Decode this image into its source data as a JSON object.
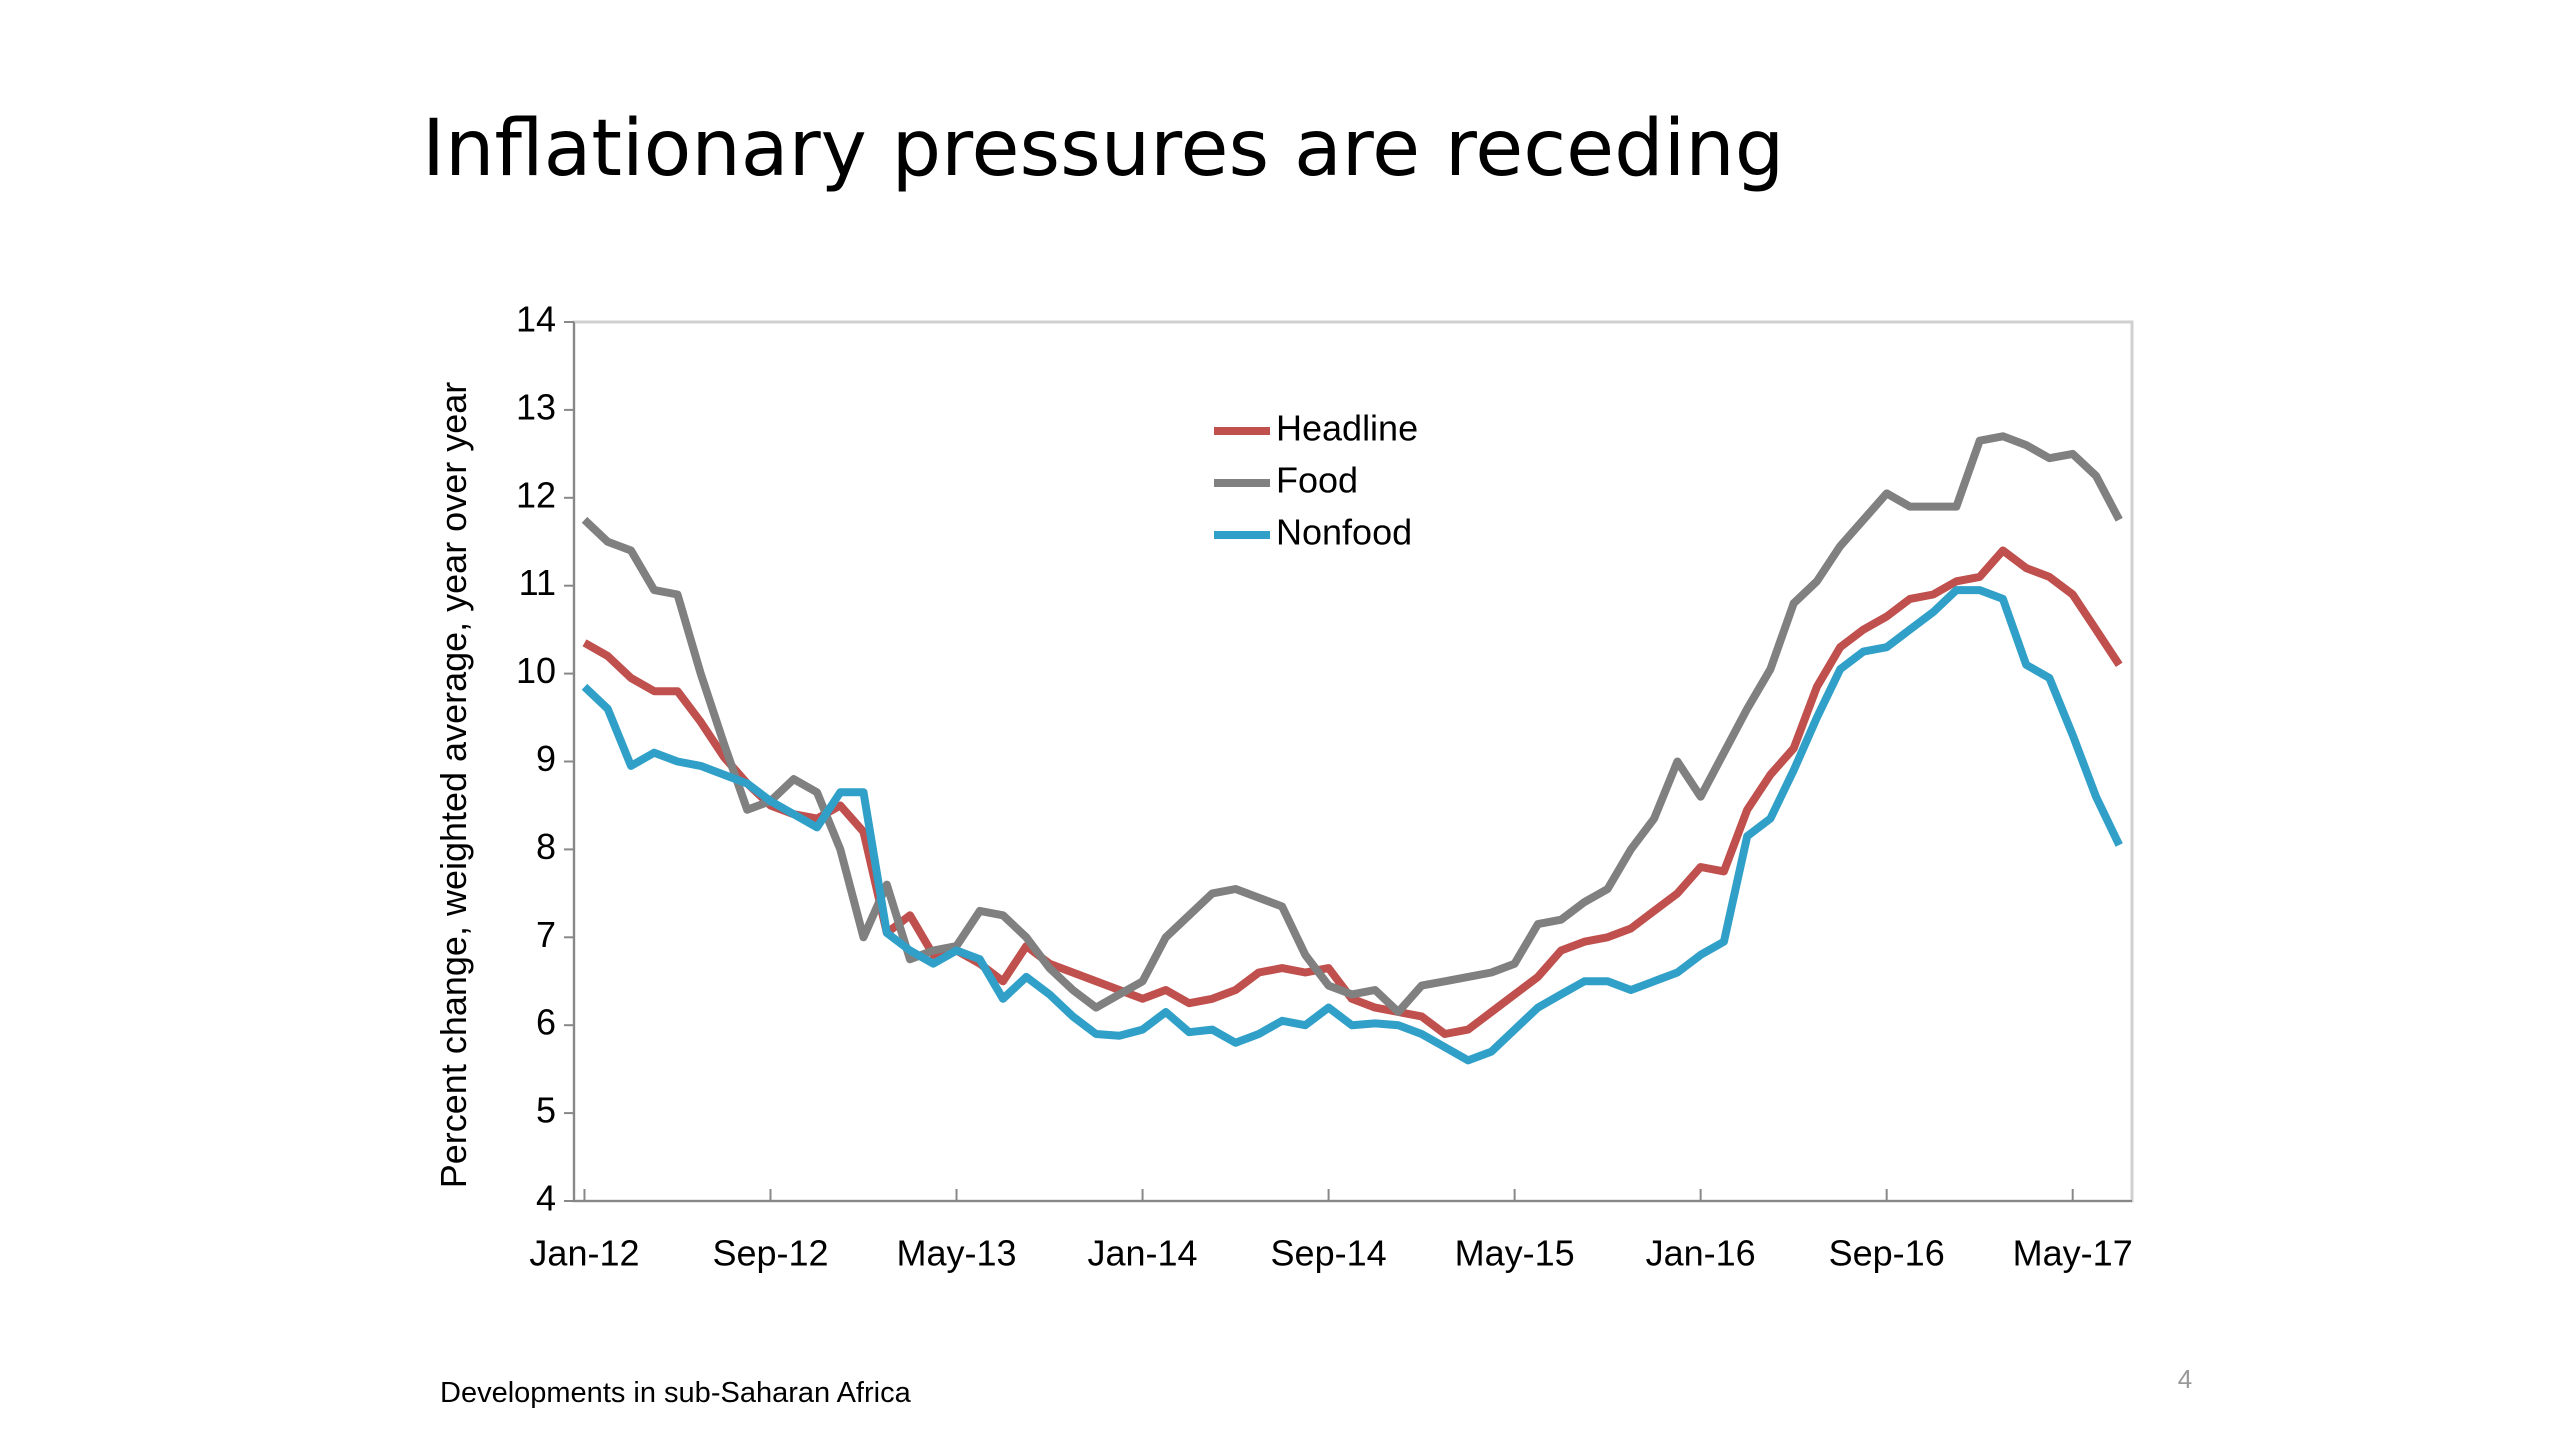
{
  "title": "Inflationary pressures are receding",
  "footer": "Developments in sub-Saharan Africa",
  "page_number": "4",
  "chart_data": {
    "type": "line",
    "y_label": "Percent change, weighted average, year over year",
    "categories": [
      "Jan-12",
      null,
      null,
      null,
      null,
      null,
      null,
      null,
      "Sep-12",
      null,
      null,
      null,
      null,
      null,
      null,
      null,
      "May-13",
      null,
      null,
      null,
      null,
      null,
      null,
      null,
      "Jan-14",
      null,
      null,
      null,
      null,
      null,
      null,
      null,
      "Sep-14",
      null,
      null,
      null,
      null,
      null,
      null,
      null,
      "May-15",
      null,
      null,
      null,
      null,
      null,
      null,
      null,
      "Jan-16",
      null,
      null,
      null,
      null,
      null,
      null,
      null,
      "Sep-16",
      null,
      null,
      null,
      null,
      null,
      null,
      null,
      "May-17",
      null,
      null
    ],
    "series": [
      {
        "name": "Headline",
        "color": "#c0504d",
        "values": [
          10.35,
          10.2,
          9.95,
          9.8,
          9.8,
          9.45,
          9.05,
          8.75,
          8.5,
          8.4,
          8.35,
          8.5,
          8.2,
          7.05,
          7.25,
          6.8,
          6.85,
          6.7,
          6.5,
          6.9,
          6.7,
          6.6,
          6.5,
          6.4,
          6.3,
          6.4,
          6.25,
          6.3,
          6.4,
          6.6,
          6.65,
          6.6,
          6.65,
          6.3,
          6.2,
          6.15,
          6.1,
          5.9,
          5.95,
          6.15,
          6.35,
          6.55,
          6.85,
          6.95,
          7.0,
          7.1,
          7.3,
          7.5,
          7.8,
          7.75,
          8.45,
          8.85,
          9.15,
          9.85,
          10.3,
          10.5,
          10.65,
          10.85,
          10.9,
          11.05,
          11.1,
          11.4,
          11.2,
          11.1,
          10.9,
          10.5,
          10.1
        ]
      },
      {
        "name": "Food",
        "color": "#808080",
        "values": [
          11.75,
          11.5,
          11.4,
          10.95,
          10.9,
          10.0,
          9.2,
          8.45,
          8.55,
          8.8,
          8.65,
          8.0,
          7.0,
          7.6,
          6.75,
          6.85,
          6.9,
          7.3,
          7.25,
          7.0,
          6.65,
          6.4,
          6.2,
          6.35,
          6.5,
          7.0,
          7.25,
          7.5,
          7.55,
          7.45,
          7.35,
          6.8,
          6.45,
          6.35,
          6.4,
          6.15,
          6.45,
          6.5,
          6.55,
          6.6,
          6.7,
          7.15,
          7.2,
          7.4,
          7.55,
          8.0,
          8.35,
          9.0,
          8.6,
          9.1,
          9.6,
          10.05,
          10.8,
          11.05,
          11.45,
          11.75,
          12.05,
          11.9,
          11.9,
          11.9,
          12.65,
          12.7,
          12.6,
          12.45,
          12.5,
          12.25,
          11.75
        ]
      },
      {
        "name": "Nonfood",
        "color": "#31a0c8",
        "values": [
          9.85,
          9.6,
          8.95,
          9.1,
          9.0,
          8.95,
          8.85,
          8.75,
          8.55,
          8.4,
          8.25,
          8.65,
          8.65,
          7.05,
          6.85,
          6.7,
          6.85,
          6.75,
          6.3,
          6.55,
          6.35,
          6.1,
          5.9,
          5.88,
          5.95,
          6.15,
          5.92,
          5.95,
          5.8,
          5.9,
          6.05,
          6.0,
          6.2,
          6.0,
          6.02,
          6.0,
          5.9,
          5.75,
          5.6,
          5.7,
          5.95,
          6.2,
          6.35,
          6.5,
          6.5,
          6.4,
          6.5,
          6.6,
          6.8,
          6.95,
          8.15,
          8.35,
          8.9,
          9.5,
          10.05,
          10.25,
          10.3,
          10.5,
          10.7,
          10.95,
          10.95,
          10.85,
          10.1,
          9.95,
          9.3,
          8.6,
          8.05
        ]
      }
    ],
    "ylim": [
      4,
      14
    ],
    "yticks": [
      4,
      5,
      6,
      7,
      8,
      9,
      10,
      11,
      12,
      13,
      14
    ],
    "legend": "top-center"
  }
}
